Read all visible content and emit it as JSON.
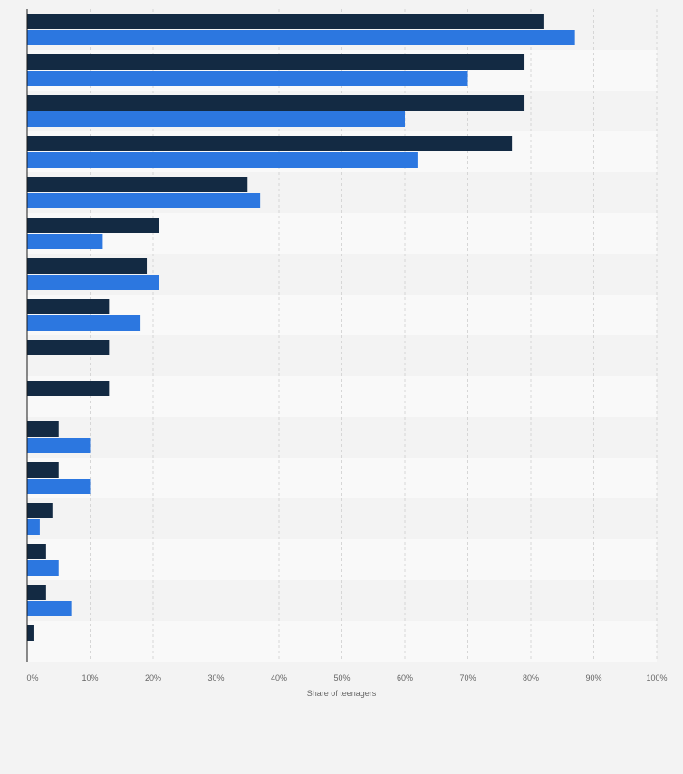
{
  "chart_data": {
    "type": "bar",
    "orientation": "horizontal",
    "categories": [
      "",
      "",
      "",
      "",
      "",
      "",
      "",
      "",
      "",
      "",
      "",
      "",
      "",
      "",
      "",
      ""
    ],
    "series": [
      {
        "color": "#132a43",
        "values": [
          82,
          79,
          79,
          77,
          35,
          21,
          19,
          13,
          13,
          13,
          5,
          5,
          4,
          3,
          3,
          1
        ]
      },
      {
        "color": "#2c77e0",
        "values": [
          87,
          70,
          60,
          62,
          37,
          12,
          21,
          18,
          0,
          0,
          10,
          10,
          2,
          5,
          7,
          0
        ]
      }
    ],
    "xlim": [
      0,
      100
    ],
    "xticks": [
      "0%",
      "10%",
      "20%",
      "30%",
      "40%",
      "50%",
      "60%",
      "70%",
      "80%",
      "90%",
      "100%"
    ],
    "xlabel": "Share of teenagers",
    "ylabel": "",
    "grid": true,
    "legend": "none"
  }
}
